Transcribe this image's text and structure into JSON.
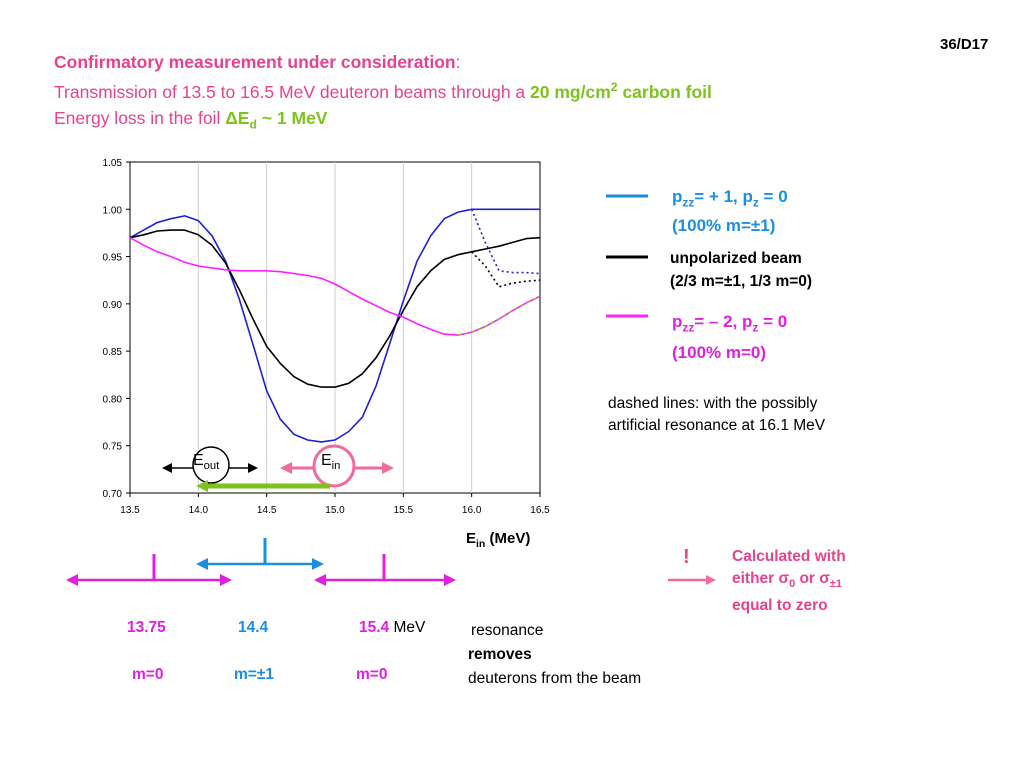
{
  "slide_number": "36/D17",
  "title": {
    "line1_main": "Confirmatory measurement under consideration",
    "line1_colon": ":",
    "line2_text": "Transmission of 13.5 to 16.5 MeV deuteron beams through a ",
    "line2_thickness": "20 mg/cm",
    "line2_sup": "2",
    "line2_foil": " carbon foil",
    "line3_text": "Energy loss in the foil ",
    "line3_delta": "ΔE",
    "line3_sub": "d",
    "line3_value": " ~ 1 MeV"
  },
  "legend": {
    "blue_line1_a": "p",
    "blue_line1_sub1": "zz",
    "blue_line1_b": "= + 1, p",
    "blue_line1_sub2": "z",
    "blue_line1_c": " = 0",
    "blue_line2": "(100% m=±1)",
    "black_line1": "unpolarized beam",
    "black_line2": "(2/3 m=±1, 1/3 m=0)",
    "mag_line1_a": "p",
    "mag_line1_sub1": "zz",
    "mag_line1_b": "= – 2, p",
    "mag_line1_sub2": "z",
    "mag_line1_c": " = 0",
    "mag_line2": "(100% m=0)"
  },
  "dashed_note_line1": "dashed lines: with the possibly",
  "dashed_note_line2": "artificial resonance at 16.1 MeV",
  "annotations": {
    "e_out": "E",
    "e_out_sub": "out",
    "e_in": "E",
    "e_in_sub": "in"
  },
  "xaxis_label_main": "E",
  "xaxis_label_sub": "in",
  "xaxis_label_unit": " (MeV)",
  "calc_note": {
    "exclaim": "!",
    "line1": "Calculated with",
    "line2_a": "either σ",
    "line2_sub0": "0",
    "line2_b": " or σ",
    "line2_sub1": "±1",
    "line3": "equal to zero"
  },
  "bottom": {
    "e1": "13.75",
    "e2": "14.4",
    "e3": "15.4",
    "unit": " MeV",
    "m1": "m=0",
    "m2": "m=±1",
    "m3": "m=0",
    "res_line1": "resonance",
    "res_line2": "removes",
    "res_line3": "deuterons from the beam"
  },
  "colors": {
    "blue_series": "#1f1fd6",
    "black_series": "#000000",
    "magenta_series": "#ff20ff",
    "legend_blue": "#1a8fe0",
    "pink": "#e8418d",
    "green": "#7ec21d",
    "magenta_arrow": "#e020e0",
    "blue_arrow": "#1a8fe0"
  },
  "chart_data": {
    "type": "line",
    "xlim": [
      13.5,
      16.5
    ],
    "ylim": [
      0.7,
      1.05
    ],
    "x_ticks": [
      "13.5",
      "14.0",
      "14.5",
      "15.0",
      "15.5",
      "16.0",
      "16.5"
    ],
    "y_ticks": [
      "0.70",
      "0.75",
      "0.80",
      "0.85",
      "0.90",
      "0.95",
      "1.00",
      "1.05"
    ],
    "grid": "vertical",
    "series": [
      {
        "color": "blue",
        "x": [
          13.5,
          13.6,
          13.7,
          13.8,
          13.9,
          14.0,
          14.1,
          14.2,
          14.3,
          14.4,
          14.5,
          14.6,
          14.7,
          14.8,
          14.9,
          15.0,
          15.1,
          15.2,
          15.3,
          15.4,
          15.5,
          15.6,
          15.7,
          15.8,
          15.9,
          16.0,
          16.1,
          16.2,
          16.3,
          16.4,
          16.5
        ],
        "y": [
          0.97,
          0.978,
          0.986,
          0.99,
          0.993,
          0.988,
          0.972,
          0.945,
          0.905,
          0.857,
          0.808,
          0.778,
          0.762,
          0.756,
          0.754,
          0.756,
          0.765,
          0.78,
          0.813,
          0.858,
          0.903,
          0.945,
          0.972,
          0.99,
          0.997,
          1.0,
          1.0,
          1.0,
          1.0,
          1.0,
          1.0
        ]
      },
      {
        "color": "black",
        "x": [
          13.5,
          13.6,
          13.7,
          13.8,
          13.9,
          14.0,
          14.1,
          14.2,
          14.3,
          14.4,
          14.5,
          14.6,
          14.7,
          14.8,
          14.9,
          15.0,
          15.1,
          15.2,
          15.3,
          15.4,
          15.5,
          15.6,
          15.7,
          15.8,
          15.9,
          16.0,
          16.1,
          16.2,
          16.3,
          16.4,
          16.5
        ],
        "y": [
          0.97,
          0.973,
          0.977,
          0.978,
          0.978,
          0.973,
          0.962,
          0.943,
          0.915,
          0.884,
          0.855,
          0.837,
          0.823,
          0.815,
          0.812,
          0.812,
          0.816,
          0.826,
          0.843,
          0.866,
          0.893,
          0.918,
          0.935,
          0.947,
          0.952,
          0.955,
          0.958,
          0.961,
          0.965,
          0.969,
          0.97
        ]
      },
      {
        "color": "magenta",
        "x": [
          13.5,
          13.6,
          13.7,
          13.8,
          13.9,
          14.0,
          14.1,
          14.2,
          14.3,
          14.4,
          14.5,
          14.6,
          14.7,
          14.8,
          14.9,
          15.0,
          15.1,
          15.2,
          15.3,
          15.4,
          15.5,
          15.6,
          15.7,
          15.8,
          15.9,
          16.0,
          16.1,
          16.2,
          16.3,
          16.4,
          16.5
        ],
        "y": [
          0.97,
          0.962,
          0.955,
          0.95,
          0.944,
          0.94,
          0.938,
          0.936,
          0.935,
          0.935,
          0.935,
          0.934,
          0.932,
          0.93,
          0.927,
          0.921,
          0.913,
          0.905,
          0.898,
          0.891,
          0.886,
          0.879,
          0.873,
          0.868,
          0.867,
          0.87,
          0.876,
          0.884,
          0.893,
          0.901,
          0.908
        ]
      },
      {
        "color": "blue",
        "style": "dotted",
        "x": [
          16.0,
          16.1,
          16.2,
          16.3,
          16.4,
          16.5
        ],
        "y": [
          1.0,
          0.965,
          0.935,
          0.933,
          0.933,
          0.932
        ]
      },
      {
        "color": "black",
        "style": "dotted",
        "x": [
          16.0,
          16.1,
          16.2,
          16.3,
          16.4,
          16.5
        ],
        "y": [
          0.955,
          0.94,
          0.918,
          0.922,
          0.924,
          0.925
        ]
      }
    ]
  }
}
